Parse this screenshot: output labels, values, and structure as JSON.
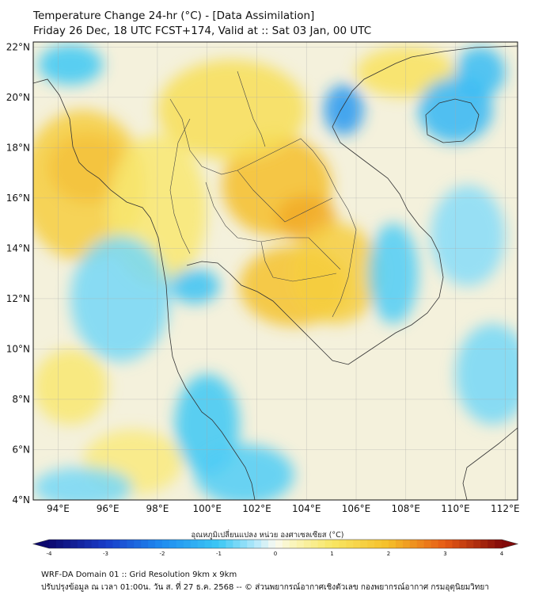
{
  "header": {
    "title_line1": "Temperature Change 24-hr (°C) - [Data Assimilation]",
    "title_line2": "Friday 26 Dec, 18 UTC FCST+174, Valid at :: Sat 03 Jan, 00 UTC"
  },
  "map": {
    "lat_ticks": [
      "22°N",
      "20°N",
      "18°N",
      "16°N",
      "14°N",
      "12°N",
      "10°N",
      "8°N",
      "6°N",
      "4°N"
    ],
    "lon_ticks": [
      "94°E",
      "96°E",
      "98°E",
      "100°E",
      "102°E",
      "104°E",
      "106°E",
      "108°E",
      "110°E",
      "112°E"
    ],
    "extent": {
      "lon_min": 93,
      "lon_max": 112.5,
      "lat_min": 4,
      "lat_max": 22.2
    },
    "field_blobs": [
      {
        "lon": 95.2,
        "lat": 17.2,
        "rx": 1.6,
        "ry": 1.4,
        "value": 2.6
      },
      {
        "lon": 95.0,
        "lat": 16.5,
        "rx": 2.5,
        "ry": 3.0,
        "value": 1.6
      },
      {
        "lon": 102.8,
        "lat": 16.5,
        "rx": 2.2,
        "ry": 2.0,
        "value": 2.0
      },
      {
        "lon": 104.0,
        "lat": 15.2,
        "rx": 1.2,
        "ry": 0.9,
        "value": 2.2
      },
      {
        "lon": 103.5,
        "lat": 12.5,
        "rx": 2.2,
        "ry": 1.6,
        "value": 1.9
      },
      {
        "lon": 105.2,
        "lat": 13.0,
        "rx": 1.8,
        "ry": 2.0,
        "value": 1.6
      },
      {
        "lon": 101.0,
        "lat": 19.5,
        "rx": 3.0,
        "ry": 2.0,
        "value": 1.2
      },
      {
        "lon": 98.0,
        "lat": 15.5,
        "rx": 2.0,
        "ry": 3.0,
        "value": 0.9
      },
      {
        "lon": 108.0,
        "lat": 21.0,
        "rx": 2.0,
        "ry": 1.0,
        "value": 1.1
      },
      {
        "lon": 94.5,
        "lat": 8.5,
        "rx": 1.5,
        "ry": 1.5,
        "value": 0.9
      },
      {
        "lon": 97.0,
        "lat": 5.5,
        "rx": 2.0,
        "ry": 1.3,
        "value": 0.8
      },
      {
        "lon": 105.5,
        "lat": 19.5,
        "rx": 0.8,
        "ry": 1.0,
        "value": -1.8
      },
      {
        "lon": 110.0,
        "lat": 19.5,
        "rx": 1.5,
        "ry": 1.3,
        "value": -1.3
      },
      {
        "lon": 111.0,
        "lat": 21.0,
        "rx": 1.0,
        "ry": 1.0,
        "value": -1.2
      },
      {
        "lon": 99.5,
        "lat": 12.5,
        "rx": 1.0,
        "ry": 0.7,
        "value": -1.1
      },
      {
        "lon": 100.0,
        "lat": 7.0,
        "rx": 1.3,
        "ry": 2.0,
        "value": -1.0
      },
      {
        "lon": 94.5,
        "lat": 21.3,
        "rx": 1.3,
        "ry": 0.8,
        "value": -1.0
      },
      {
        "lon": 96.5,
        "lat": 12.0,
        "rx": 2.0,
        "ry": 2.5,
        "value": -0.7
      },
      {
        "lon": 101.5,
        "lat": 5.0,
        "rx": 2.0,
        "ry": 1.2,
        "value": -0.9
      },
      {
        "lon": 107.5,
        "lat": 13.0,
        "rx": 1.0,
        "ry": 2.0,
        "value": -0.9
      },
      {
        "lon": 110.5,
        "lat": 14.5,
        "rx": 1.5,
        "ry": 2.0,
        "value": -0.6
      },
      {
        "lon": 111.5,
        "lat": 9.0,
        "rx": 1.5,
        "ry": 2.0,
        "value": -0.7
      },
      {
        "lon": 95.0,
        "lat": 4.5,
        "rx": 2.0,
        "ry": 0.8,
        "value": -0.7
      }
    ]
  },
  "colorbar": {
    "title": "อุณหภูมิเปลี่ยนแปลง หน่วย องศาเซลเซียส (°C)",
    "ticks": [
      "-4",
      "-3",
      "-2",
      "-1",
      "0",
      "1",
      "2",
      "3",
      "4"
    ],
    "min": -4,
    "max": 4
  },
  "footer": {
    "line1": "WRF-DA Domain 01 :: Grid Resolution 9km x 9km",
    "line2": "ปรับปรุงข้อมูล ณ เวลา 01:00น. วัน ส. ที่ 27 ธ.ค. 2568 -- © ส่วนพยากรณ์อากาศเชิงตัวเลข กองพยากรณ์อากาศ กรมอุตุนิยมวิทยา"
  }
}
